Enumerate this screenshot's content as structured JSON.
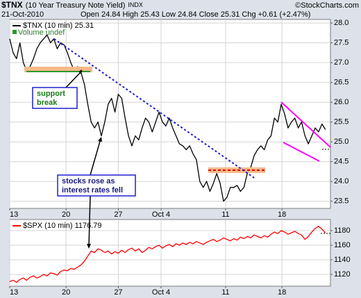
{
  "header": {
    "symbol": "$TNX",
    "name": "(10 Year Treasury Note Yield)",
    "exchange": "INDX",
    "copyright": "©StockCharts.com",
    "date": "21-Oct-2010",
    "quote": "Open 24.84 High 25.43 Low 24.84 Close 25.31 Chg +0.61 (+2.47%)"
  },
  "chart_data": [
    {
      "type": "line",
      "series": [
        {
          "name": "$TNX (10 min) 25.31",
          "color": "#000000",
          "values": [
            27.6,
            27.25,
            27.1,
            27.5,
            27.0,
            26.8,
            26.9,
            27.1,
            27.35,
            27.5,
            27.6,
            27.7,
            27.5,
            27.6,
            27.35,
            27.5,
            27.45,
            27.25,
            27.0,
            26.8,
            26.9,
            26.75,
            26.45,
            25.95,
            25.5,
            25.35,
            25.5,
            25.15,
            25.5,
            25.95,
            26.1,
            25.75,
            26.2,
            26.1,
            25.6,
            25.15,
            24.9,
            25.15,
            25.05,
            25.35,
            25.6,
            25.5,
            25.25,
            25.5,
            25.75,
            25.5,
            25.4,
            25.6,
            25.35,
            25.15,
            24.95,
            24.9,
            24.8,
            24.9,
            24.7,
            24.55,
            24.0,
            23.85,
            24.0,
            23.75,
            23.95,
            24.2,
            23.95,
            23.5,
            23.6,
            23.85,
            23.85,
            23.9,
            23.75,
            23.85,
            24.2,
            24.35,
            24.65,
            24.8,
            24.9,
            24.8,
            25.05,
            25.15,
            25.6,
            25.5,
            25.95,
            25.7,
            25.35,
            25.5,
            25.6,
            25.35,
            25.5,
            25.15,
            24.95,
            25.15,
            25.35,
            25.25,
            25.45,
            25.31
          ]
        }
      ],
      "subtitle": "Volume undef",
      "annotations": [
        {
          "lines": [
            "support",
            "break"
          ]
        },
        {
          "lines": [
            "stocks rose as",
            "interest rates fell"
          ]
        }
      ],
      "x": [
        0,
        1,
        2,
        3,
        4,
        5,
        6,
        7,
        8,
        9,
        10,
        11,
        12,
        13,
        14,
        15,
        16,
        17,
        18,
        19,
        20,
        21,
        22,
        23,
        24,
        25,
        26,
        27,
        28,
        29,
        30,
        31,
        32,
        33,
        34,
        35,
        36,
        37,
        38,
        39,
        40,
        41,
        42,
        43,
        44,
        45,
        46,
        47,
        48,
        49,
        50,
        51,
        52,
        53,
        54,
        55,
        56,
        57,
        58,
        59,
        60,
        61,
        62,
        63,
        64,
        65,
        66,
        67,
        68,
        69,
        70,
        71,
        72,
        73,
        74,
        75,
        76,
        77,
        78,
        79,
        80,
        81,
        82,
        83,
        84,
        85,
        86,
        87,
        88,
        89,
        90,
        91,
        92,
        93
      ],
      "xlim": [
        0,
        94.5
      ],
      "xticks": [
        {
          "value": 0,
          "label": "13"
        },
        {
          "value": 16.6,
          "label": "20"
        },
        {
          "value": 32,
          "label": "27"
        },
        {
          "value": 44.6,
          "label": "Oct 4"
        },
        {
          "value": 63.6,
          "label": "11"
        },
        {
          "value": 80.2,
          "label": "18"
        }
      ],
      "ylim": [
        23.32,
        28.09
      ],
      "yticks": [
        23.5,
        {
          "value": 24,
          "label": "24.0"
        },
        24.5,
        {
          "value": 25,
          "label": "25.0"
        },
        25.5,
        {
          "value": 26,
          "label": "26.0"
        },
        26.5,
        {
          "value": 27,
          "label": "27.0"
        },
        27.5,
        {
          "value": 28,
          "label": "28.0"
        }
      ],
      "grid": true
    },
    {
      "type": "line",
      "series": [
        {
          "name": "$SPX (10 min) 1176.79",
          "color": "#ff0000",
          "values": [
            1110,
            1112,
            1109,
            1113,
            1115,
            1112,
            1116,
            1118,
            1115,
            1117,
            1120,
            1118,
            1122,
            1121,
            1119,
            1124,
            1126,
            1125,
            1128,
            1127,
            1130,
            1133,
            1138,
            1145,
            1152,
            1150,
            1155,
            1153,
            1150,
            1152,
            1148,
            1151,
            1149,
            1153,
            1150,
            1154,
            1156,
            1152,
            1155,
            1150,
            1153,
            1157,
            1155,
            1158,
            1160,
            1156,
            1159,
            1161,
            1158,
            1162,
            1160,
            1163,
            1161,
            1164,
            1162,
            1165,
            1163,
            1161,
            1164,
            1166,
            1168,
            1165,
            1167,
            1170,
            1168,
            1166,
            1169,
            1167,
            1171,
            1169,
            1172,
            1170,
            1174,
            1172,
            1170,
            1173,
            1171,
            1175,
            1178,
            1176,
            1180,
            1178,
            1175,
            1177,
            1179,
            1176,
            1174,
            1168,
            1172,
            1178,
            1183,
            1186,
            1182,
            1176.79
          ]
        }
      ],
      "x": [
        0,
        1,
        2,
        3,
        4,
        5,
        6,
        7,
        8,
        9,
        10,
        11,
        12,
        13,
        14,
        15,
        16,
        17,
        18,
        19,
        20,
        21,
        22,
        23,
        24,
        25,
        26,
        27,
        28,
        29,
        30,
        31,
        32,
        33,
        34,
        35,
        36,
        37,
        38,
        39,
        40,
        41,
        42,
        43,
        44,
        45,
        46,
        47,
        48,
        49,
        50,
        51,
        52,
        53,
        54,
        55,
        56,
        57,
        58,
        59,
        60,
        61,
        62,
        63,
        64,
        65,
        66,
        67,
        68,
        69,
        70,
        71,
        72,
        73,
        74,
        75,
        76,
        77,
        78,
        79,
        80,
        81,
        82,
        83,
        84,
        85,
        86,
        87,
        88,
        89,
        90,
        91,
        92,
        93
      ],
      "xlim": [
        0,
        94.5
      ],
      "xticks": [
        {
          "value": 0,
          "label": "13"
        },
        {
          "value": 16.6,
          "label": "20"
        },
        {
          "value": 32,
          "label": "27"
        },
        {
          "value": 44.6,
          "label": "Oct 4"
        },
        {
          "value": 63.6,
          "label": "11"
        },
        {
          "value": 80.2,
          "label": "18"
        }
      ],
      "ylim": [
        1103.8,
        1195.2
      ],
      "yticks": [
        1120,
        1140,
        1160,
        1180
      ],
      "grid": true
    }
  ]
}
